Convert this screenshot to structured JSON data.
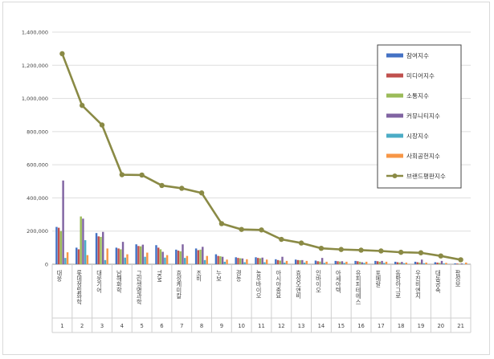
{
  "chart_data": {
    "type": "bar",
    "combo_line_series": "브랜드평판지수",
    "title": "",
    "xlabel": "",
    "ylabel": "",
    "ylim": [
      0,
      1400000
    ],
    "yticks": [
      "0",
      "200,000",
      "400,000",
      "600,000",
      "800,000",
      "1,000,000",
      "1,200,000",
      "1,400,000"
    ],
    "grid": true,
    "legend_position": "right",
    "categories": [
      "대웅",
      "롯데정밀화학",
      "대웅기어",
      "남해화학",
      "그린생명과학",
      "TKM",
      "효성케미칼",
      "조비",
      "누보",
      "경농",
      "농우바이오",
      "아시아종묘",
      "효성오앤비",
      "인바이오",
      "아세아텍",
      "유피피테에스",
      "포메랄",
      "동방아그로",
      "우진비엔지",
      "대동공속",
      "팜성보"
    ],
    "ranks": [
      "1",
      "2",
      "3",
      "4",
      "5",
      "6",
      "7",
      "8",
      "9",
      "10",
      "11",
      "12",
      "13",
      "14",
      "15",
      "16",
      "17",
      "18",
      "19",
      "20",
      "21"
    ],
    "series": [
      {
        "name": "참여지수",
        "color": "#4472c4",
        "type": "bar",
        "values": [
          225000,
          100000,
          188000,
          100000,
          120000,
          115000,
          88000,
          95000,
          60000,
          42000,
          42000,
          30000,
          28000,
          22000,
          20000,
          20000,
          20000,
          15000,
          15000,
          12000,
          5000
        ]
      },
      {
        "name": "미디어지수",
        "color": "#c0504d",
        "type": "bar",
        "values": [
          220000,
          90000,
          168000,
          95000,
          110000,
          100000,
          82000,
          85000,
          50000,
          38000,
          38000,
          25000,
          25000,
          18000,
          18000,
          18000,
          18000,
          12000,
          12000,
          10000,
          4000
        ]
      },
      {
        "name": "소통지수",
        "color": "#9bbb59",
        "type": "bar",
        "values": [
          200000,
          288000,
          165000,
          90000,
          108000,
          90000,
          78000,
          88000,
          48000,
          36000,
          36000,
          22000,
          24000,
          16000,
          16000,
          15000,
          15000,
          10000,
          10000,
          8000,
          3000
        ]
      },
      {
        "name": "커뮤니티지수",
        "color": "#8064a2",
        "type": "bar",
        "values": [
          505000,
          275000,
          195000,
          135000,
          118000,
          75000,
          120000,
          105000,
          45000,
          35000,
          40000,
          45000,
          25000,
          38000,
          18000,
          12000,
          20000,
          14000,
          28000,
          20000,
          5000
        ]
      },
      {
        "name": "시장지수",
        "color": "#4bacc6",
        "type": "bar",
        "values": [
          38000,
          145000,
          25000,
          40000,
          45000,
          40000,
          38000,
          25000,
          15000,
          12000,
          12000,
          10000,
          10000,
          8000,
          8000,
          8000,
          8000,
          6000,
          6000,
          5000,
          2000
        ]
      },
      {
        "name": "사회공헌지수",
        "color": "#f79646",
        "type": "bar",
        "values": [
          72000,
          55000,
          95000,
          60000,
          70000,
          55000,
          50000,
          50000,
          28000,
          30000,
          28000,
          20000,
          20000,
          15000,
          15000,
          15000,
          15000,
          10000,
          10000,
          8000,
          10000
        ]
      },
      {
        "name": "브랜드평판지수",
        "color": "#8a8a45",
        "type": "line",
        "values": [
          1270000,
          958000,
          840000,
          540000,
          538000,
          475000,
          458000,
          430000,
          245000,
          210000,
          207000,
          150000,
          128000,
          96000,
          89000,
          85000,
          80000,
          72000,
          69000,
          50000,
          27000
        ]
      }
    ]
  }
}
